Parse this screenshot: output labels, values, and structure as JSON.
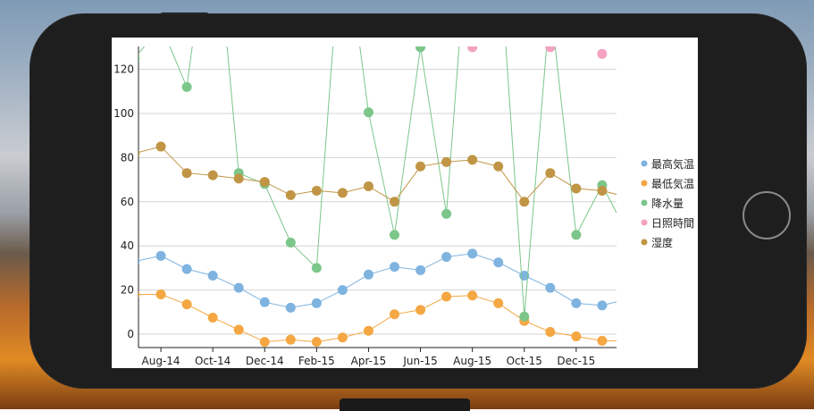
{
  "chart_data": {
    "type": "line",
    "x": [
      "2014-07",
      "2014-08",
      "2014-09",
      "2014-10",
      "2014-11",
      "2014-12",
      "2015-01",
      "2015-02",
      "2015-03",
      "2015-04",
      "2015-05",
      "2015-06",
      "2015-07",
      "2015-08",
      "2015-09",
      "2015-10",
      "2015-11",
      "2015-12",
      "2016-01",
      "2016-02"
    ],
    "x_tick_labels": [
      "Aug-14",
      "Oct-14",
      "Dec-14",
      "Feb-15",
      "Apr-15",
      "Jun-15",
      "Aug-15",
      "Oct-15",
      "Dec-15"
    ],
    "x_tick_months": [
      "2014-08",
      "2014-10",
      "2014-12",
      "2015-02",
      "2015-04",
      "2015-06",
      "2015-08",
      "2015-10",
      "2015-12"
    ],
    "y_ticks": [
      0,
      20,
      40,
      60,
      80,
      100,
      120
    ],
    "ylim": [
      -5,
      130
    ],
    "grid": true,
    "legend_position": "right",
    "series": [
      {
        "name": "最高気温",
        "color": "#7fb3e0",
        "values": [
          33,
          35.5,
          29.5,
          26.5,
          21,
          14.5,
          12,
          14,
          20,
          27,
          30.5,
          29,
          35,
          36.5,
          32.5,
          26.5,
          21,
          14,
          13,
          16
        ]
      },
      {
        "name": "最低気温",
        "color": "#f4a742",
        "values": [
          18,
          18,
          13.5,
          7.5,
          2,
          -3.5,
          -2.5,
          -3.5,
          -1.5,
          1.5,
          9,
          11,
          17,
          17.5,
          14,
          6,
          1,
          -1,
          -3,
          -3
        ]
      },
      {
        "name": "降水量",
        "color": "#7cc68a",
        "values": [
          125,
          140,
          112,
          200,
          73,
          68,
          41.5,
          30,
          190,
          100.5,
          45,
          130,
          54.5,
          210,
          180,
          8,
          150,
          45,
          67.5,
          45
        ]
      },
      {
        "name": "日照時間",
        "color": "#f3a2c0",
        "values": [
          null,
          null,
          null,
          null,
          null,
          null,
          null,
          null,
          null,
          null,
          null,
          null,
          null,
          130,
          null,
          null,
          130,
          null,
          127,
          null
        ]
      },
      {
        "name": "湿度",
        "color": "#c09545",
        "values": [
          82,
          85,
          73,
          72,
          70.5,
          69,
          63,
          65,
          64,
          67,
          60,
          76,
          78,
          79,
          76,
          60,
          73,
          66,
          65,
          62
        ]
      }
    ]
  }
}
